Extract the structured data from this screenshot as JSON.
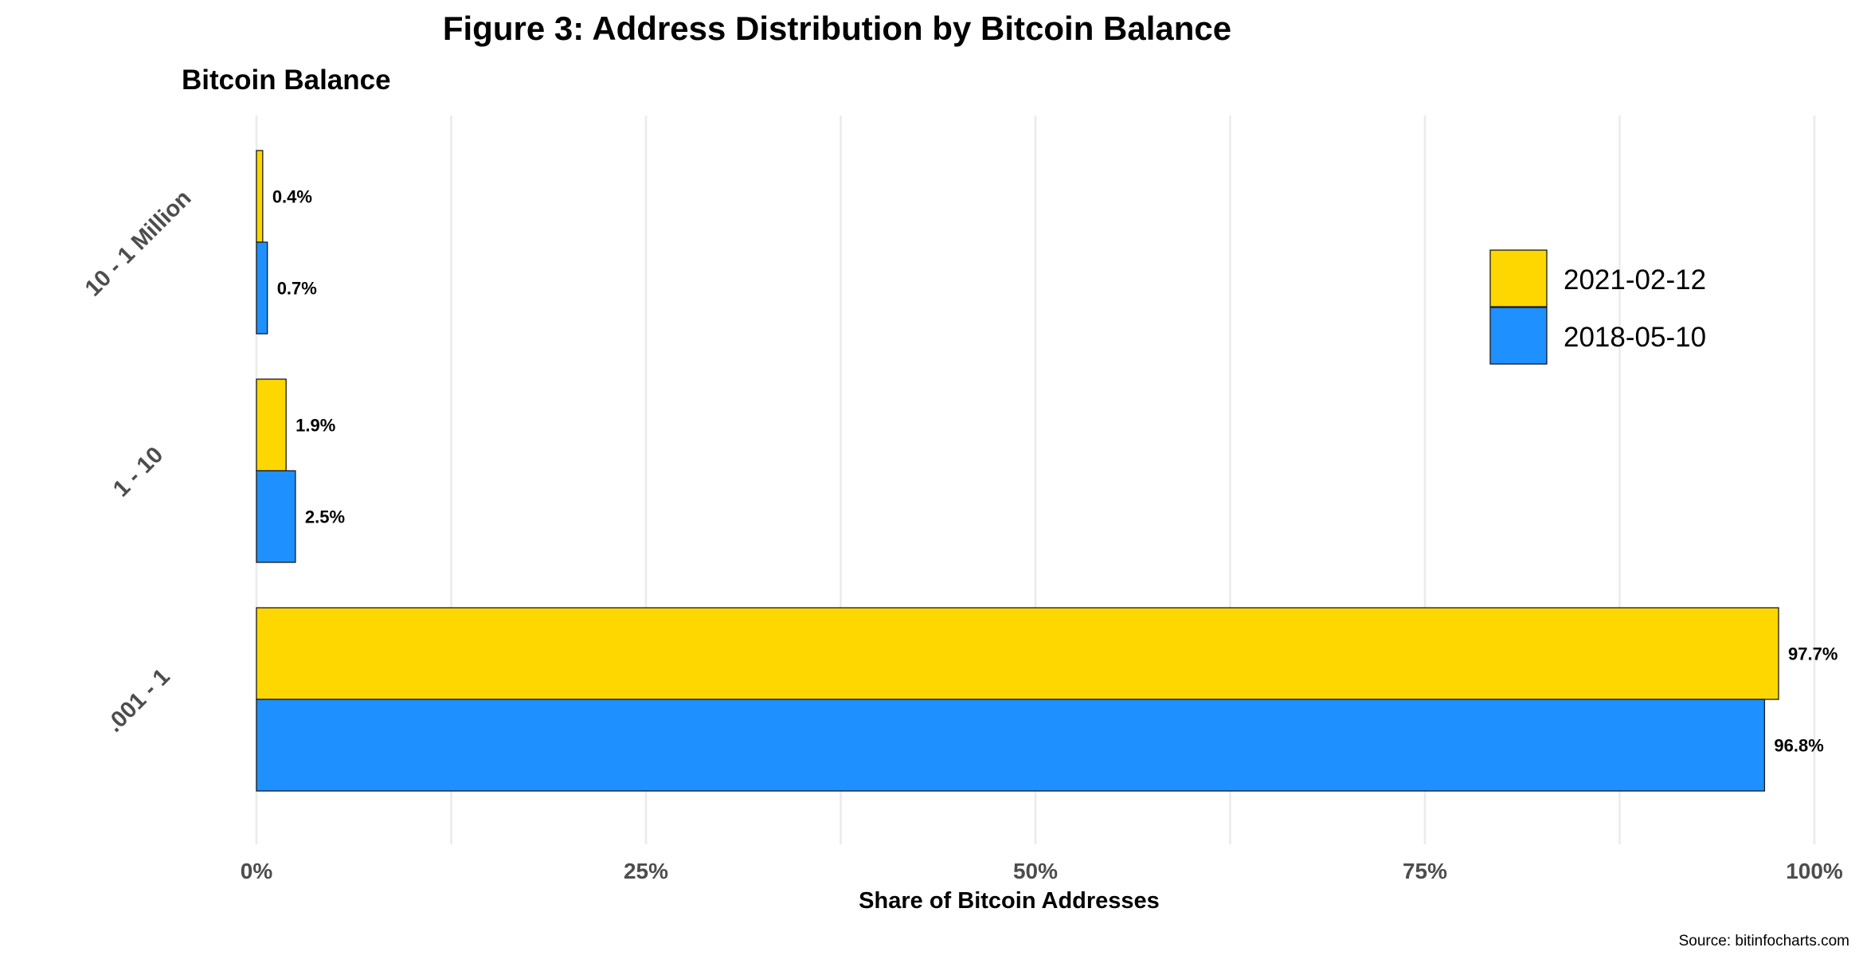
{
  "chart_data": {
    "type": "bar",
    "orientation": "horizontal",
    "title": "Figure 3: Address Distribution by Bitcoin Balance",
    "ylabel": "Bitcoin Balance",
    "xlabel": "Share of Bitcoin Addresses",
    "categories": [
      "10 - 1 Million",
      "1 - 10",
      ".001 - 1"
    ],
    "series": [
      {
        "name": "2021-02-12",
        "color": "#FFD700",
        "values": [
          0.4,
          1.9,
          97.7
        ],
        "labels": [
          "0.4%",
          "1.9%",
          "97.7%"
        ]
      },
      {
        "name": "2018-05-10",
        "color": "#1E90FF",
        "values": [
          0.7,
          2.5,
          96.8
        ],
        "labels": [
          "0.7%",
          "2.5%",
          "96.8%"
        ]
      }
    ],
    "xlim": [
      0,
      100
    ],
    "x_ticks": [
      0,
      25,
      50,
      75,
      100
    ],
    "x_tick_labels": [
      "0%",
      "25%",
      "50%",
      "75%",
      "100%"
    ],
    "grid": true,
    "legend_position": "top-right",
    "source": "Source: bitinfocharts.com"
  }
}
